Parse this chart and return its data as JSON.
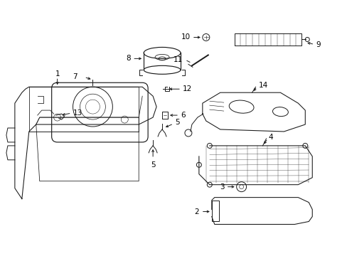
{
  "background_color": "#ffffff",
  "line_color": "#1a1a1a",
  "text_color": "#000000",
  "fig_width": 4.89,
  "fig_height": 3.6,
  "dpi": 100,
  "label_fontsize": 7.5,
  "lw": 0.7
}
